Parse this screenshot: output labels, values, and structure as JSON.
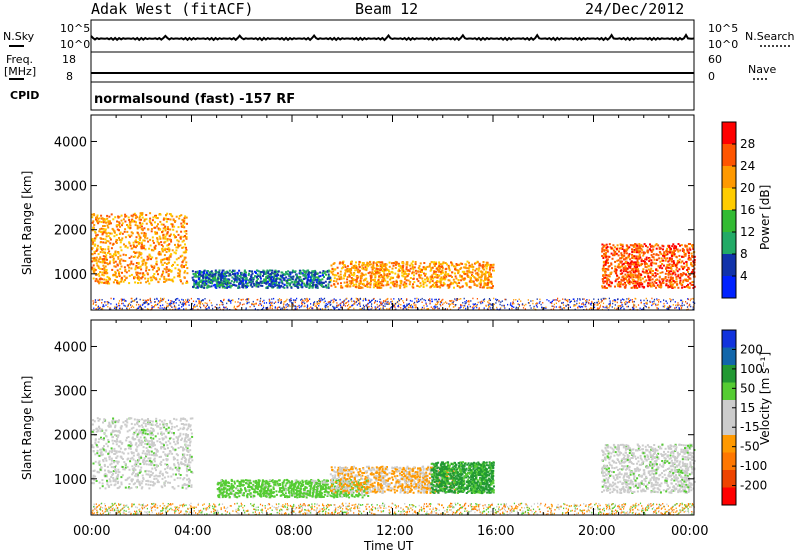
{
  "header": {
    "station": "Adak West (fitACF)",
    "beam": "Beam 12",
    "date": "24/Dec/2012"
  },
  "strip": {
    "nsky_label": "N.Sky",
    "nsky_ticks": [
      "10^5",
      "10^0"
    ],
    "nsearch_label": "N.Search",
    "nsearch_ticks": [
      "10^5",
      "10^0"
    ],
    "freq_label_1": "Freq.",
    "freq_label_2": "[MHz]",
    "freq_ticks": [
      "18",
      "8"
    ],
    "nave_label": "Nave",
    "nave_ticks": [
      "60",
      "0"
    ],
    "cpid_label": "CPID",
    "cpid_text": "normalsound (fast) -157 RF"
  },
  "axes": {
    "xlabel": "Time UT",
    "ylabel": "Slant Range [km]",
    "x_ticks": [
      "00:00",
      "04:00",
      "08:00",
      "12:00",
      "16:00",
      "20:00",
      "00:00"
    ]
  },
  "colorbars": {
    "power": {
      "label": "Power [dB]",
      "ticks": [
        "28",
        "24",
        "20",
        "16",
        "12",
        "8",
        "4"
      ],
      "colors": [
        "#ff0000",
        "#ff5500",
        "#ff9900",
        "#ffcc00",
        "#33bb33",
        "#22aa66",
        "#1133aa",
        "#0022ff"
      ]
    },
    "velocity": {
      "label": "Velocity [m s⁻¹]",
      "ticks": [
        "200",
        "100",
        "50",
        "15",
        "-15",
        "-50",
        "-100",
        "-200"
      ],
      "colors": [
        "#1133dd",
        "#1166aa",
        "#229933",
        "#55cc33",
        "#cccccc",
        "#cccccc",
        "#ff9900",
        "#ff7700",
        "#ee4400",
        "#ff0000"
      ]
    }
  },
  "chart_data": [
    {
      "type": "heatmap",
      "panel": "power",
      "xlabel": "Time UT",
      "ylabel": "Slant Range [km]",
      "xlim": [
        0,
        24
      ],
      "ylim": [
        180,
        4600
      ],
      "y_ticks": [
        1000,
        2000,
        3000,
        4000
      ],
      "x_ticks": [
        "00:00",
        "04:00",
        "08:00",
        "12:00",
        "16:00",
        "20:00",
        "00:00"
      ],
      "colorbar": {
        "label": "Power [dB]",
        "range": [
          0,
          32
        ]
      },
      "regions": [
        {
          "t": [
            0.0,
            3.8
          ],
          "r": [
            800,
            2400
          ],
          "value": 22
        },
        {
          "t": [
            4.0,
            9.5
          ],
          "r": [
            700,
            1100
          ],
          "value": 8
        },
        {
          "t": [
            9.5,
            16.0
          ],
          "r": [
            700,
            1300
          ],
          "value": 22
        },
        {
          "t": [
            20.3,
            24.0
          ],
          "r": [
            700,
            1700
          ],
          "value": 26
        }
      ]
    },
    {
      "type": "heatmap",
      "panel": "velocity",
      "xlabel": "Time UT",
      "ylabel": "Slant Range [km]",
      "xlim": [
        0,
        24
      ],
      "ylim": [
        180,
        4600
      ],
      "y_ticks": [
        1000,
        2000,
        3000,
        4000
      ],
      "x_ticks": [
        "00:00",
        "04:00",
        "08:00",
        "12:00",
        "16:00",
        "20:00",
        "00:00"
      ],
      "colorbar": {
        "label": "Velocity [m s⁻¹]",
        "range": [
          -200,
          200
        ]
      },
      "regions": [
        {
          "t": [
            0.0,
            4.0
          ],
          "r": [
            800,
            2400
          ],
          "value": 0
        },
        {
          "t": [
            5.0,
            11.0
          ],
          "r": [
            600,
            1000
          ],
          "value": 30
        },
        {
          "t": [
            9.5,
            14.5
          ],
          "r": [
            700,
            1300
          ],
          "value": -50
        },
        {
          "t": [
            13.5,
            16.0
          ],
          "r": [
            700,
            1400
          ],
          "value": 60
        },
        {
          "t": [
            20.3,
            24.0
          ],
          "r": [
            700,
            1800
          ],
          "value": 0
        }
      ]
    }
  ]
}
